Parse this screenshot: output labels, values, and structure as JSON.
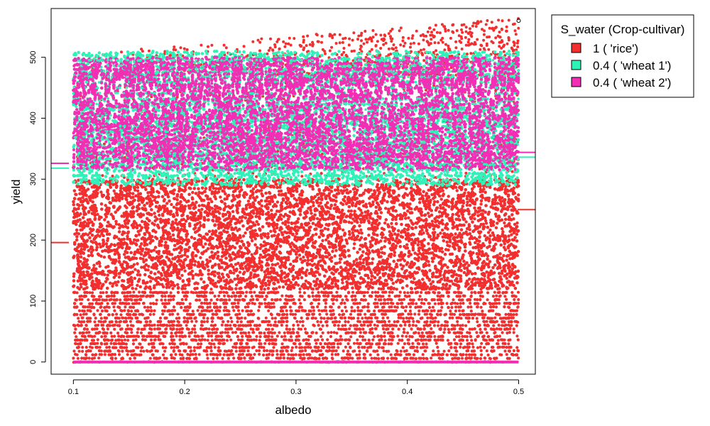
{
  "chart_data": {
    "type": "scatter",
    "title": "",
    "xlabel": "albedo",
    "ylabel": "yield",
    "xlim": [
      0.08,
      0.515
    ],
    "ylim": [
      -20,
      580
    ],
    "xticks": [
      0.1,
      0.2,
      0.3,
      0.4,
      0.5
    ],
    "xtick_labels": [
      "0.1",
      "0.2",
      "0.3",
      "0.4",
      "0.5"
    ],
    "yticks": [
      0,
      100,
      200,
      300,
      400,
      500
    ],
    "ytick_labels": [
      "0",
      "100",
      "200",
      "300",
      "400",
      "500"
    ],
    "grid": false,
    "legend": {
      "title": "S_water (Crop-cultivar)",
      "position": "top-right outside",
      "entries": [
        {
          "label": "1 ( 'rice')",
          "color": "#f22e2e"
        },
        {
          "label": "0.4 ( 'wheat 1')",
          "color": "#2ef2b8"
        },
        {
          "label": "0.4 ( 'wheat 2')",
          "color": "#f22eb4"
        }
      ]
    },
    "series": [
      {
        "name": "1 ( 'rice')",
        "color": "#f22e2e",
        "x_range": [
          0.1,
          0.5
        ],
        "y_range": [
          0,
          565
        ],
        "dense_band": [
          120,
          300
        ],
        "sparse_band": [
          0,
          120
        ]
      },
      {
        "name": "0.4 ( 'wheat 1')",
        "color": "#2ef2b8",
        "x_range": [
          0.1,
          0.5
        ],
        "y_range": [
          290,
          520
        ],
        "baseline": 0
      },
      {
        "name": "0.4 ( 'wheat 2')",
        "color": "#f22eb4",
        "x_range": [
          0.1,
          0.5
        ],
        "y_range": [
          295,
          500
        ],
        "baseline": 0
      }
    ],
    "margin_lines": [
      {
        "side": "left",
        "y": 196,
        "color": "#f22e2e"
      },
      {
        "side": "left",
        "y": 318,
        "color": "#2ef2b8"
      },
      {
        "side": "left",
        "y": 326,
        "color": "#f22eb4"
      },
      {
        "side": "right",
        "y": 250,
        "color": "#f22e2e"
      },
      {
        "side": "right",
        "y": 336,
        "color": "#2ef2b8"
      },
      {
        "side": "right",
        "y": 344,
        "color": "#f22eb4"
      }
    ],
    "outlier": {
      "x": 0.5,
      "y": 560
    }
  }
}
